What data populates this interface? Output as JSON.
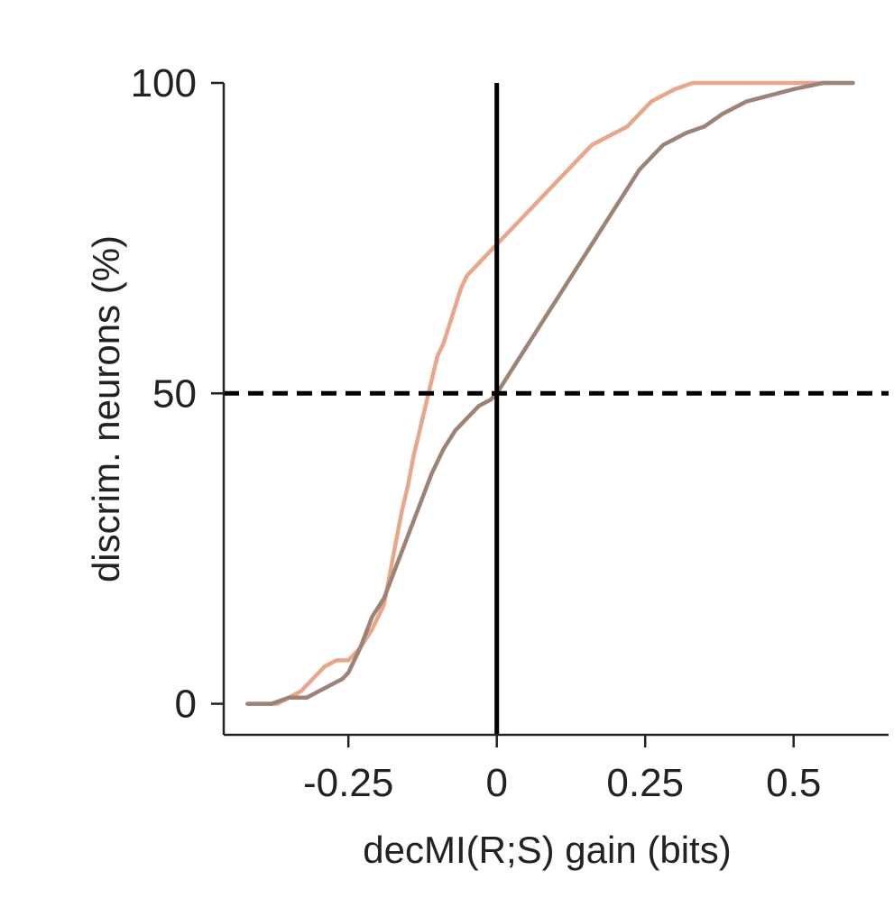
{
  "chart_data": {
    "type": "line",
    "title": "",
    "xlabel": "decMI(R;S) gain (bits)",
    "ylabel": "discrim. neurons (%)",
    "xlim": [
      -0.46,
      0.66
    ],
    "ylim": [
      -5,
      100
    ],
    "xticks": [
      {
        "value": -0.25,
        "label": "-0.25"
      },
      {
        "value": 0,
        "label": "0"
      },
      {
        "value": 0.25,
        "label": "0.25"
      },
      {
        "value": 0.5,
        "label": "0.5"
      }
    ],
    "yticks": [
      {
        "value": 0,
        "label": "0"
      },
      {
        "value": 50,
        "label": "50"
      },
      {
        "value": 100,
        "label": "100"
      }
    ],
    "grid": false,
    "legend": "none",
    "reference_lines": [
      {
        "orientation": "vertical",
        "value": 0,
        "style": "solid",
        "color": "#000000"
      },
      {
        "orientation": "horizontal",
        "value": 50,
        "style": "dashed",
        "color": "#000000"
      }
    ],
    "series": [
      {
        "color": "#e8a68a",
        "x": [
          -0.42,
          -0.37,
          -0.33,
          -0.31,
          -0.29,
          -0.27,
          -0.25,
          -0.23,
          -0.21,
          -0.19,
          -0.18,
          -0.17,
          -0.16,
          -0.15,
          -0.14,
          -0.13,
          -0.12,
          -0.11,
          -0.1,
          -0.09,
          -0.08,
          -0.07,
          -0.06,
          -0.05,
          -0.04,
          -0.03,
          -0.02,
          -0.01,
          0,
          0.02,
          0.04,
          0.06,
          0.08,
          0.1,
          0.12,
          0.14,
          0.16,
          0.18,
          0.2,
          0.22,
          0.24,
          0.26,
          0.28,
          0.3,
          0.33,
          0.36,
          0.4,
          0.6
        ],
        "y": [
          0,
          0,
          2,
          4,
          6,
          7,
          7,
          9,
          12,
          16,
          21,
          26,
          31,
          35,
          40,
          44,
          48,
          52,
          56,
          58,
          61,
          64,
          67,
          69,
          70,
          71,
          72,
          73,
          74,
          76,
          78,
          80,
          82,
          84,
          86,
          88,
          90,
          91,
          92,
          93,
          95,
          97,
          98,
          99,
          100,
          100,
          100,
          100
        ]
      },
      {
        "color": "#9d8376",
        "x": [
          -0.42,
          -0.38,
          -0.35,
          -0.32,
          -0.3,
          -0.28,
          -0.26,
          -0.25,
          -0.23,
          -0.21,
          -0.19,
          -0.17,
          -0.15,
          -0.13,
          -0.11,
          -0.09,
          -0.07,
          -0.05,
          -0.03,
          -0.01,
          0,
          0.02,
          0.04,
          0.06,
          0.08,
          0.1,
          0.12,
          0.14,
          0.16,
          0.18,
          0.2,
          0.22,
          0.24,
          0.26,
          0.28,
          0.3,
          0.32,
          0.35,
          0.38,
          0.42,
          0.46,
          0.5,
          0.55,
          0.6
        ],
        "y": [
          0,
          0,
          1,
          1,
          2,
          3,
          4,
          5,
          9,
          14,
          17,
          22,
          27,
          32,
          37,
          41,
          44,
          46,
          48,
          49,
          50,
          53,
          56,
          59,
          62,
          65,
          68,
          71,
          74,
          77,
          80,
          83,
          86,
          88,
          90,
          91,
          92,
          93,
          95,
          97,
          98,
          99,
          100,
          100
        ]
      }
    ]
  }
}
